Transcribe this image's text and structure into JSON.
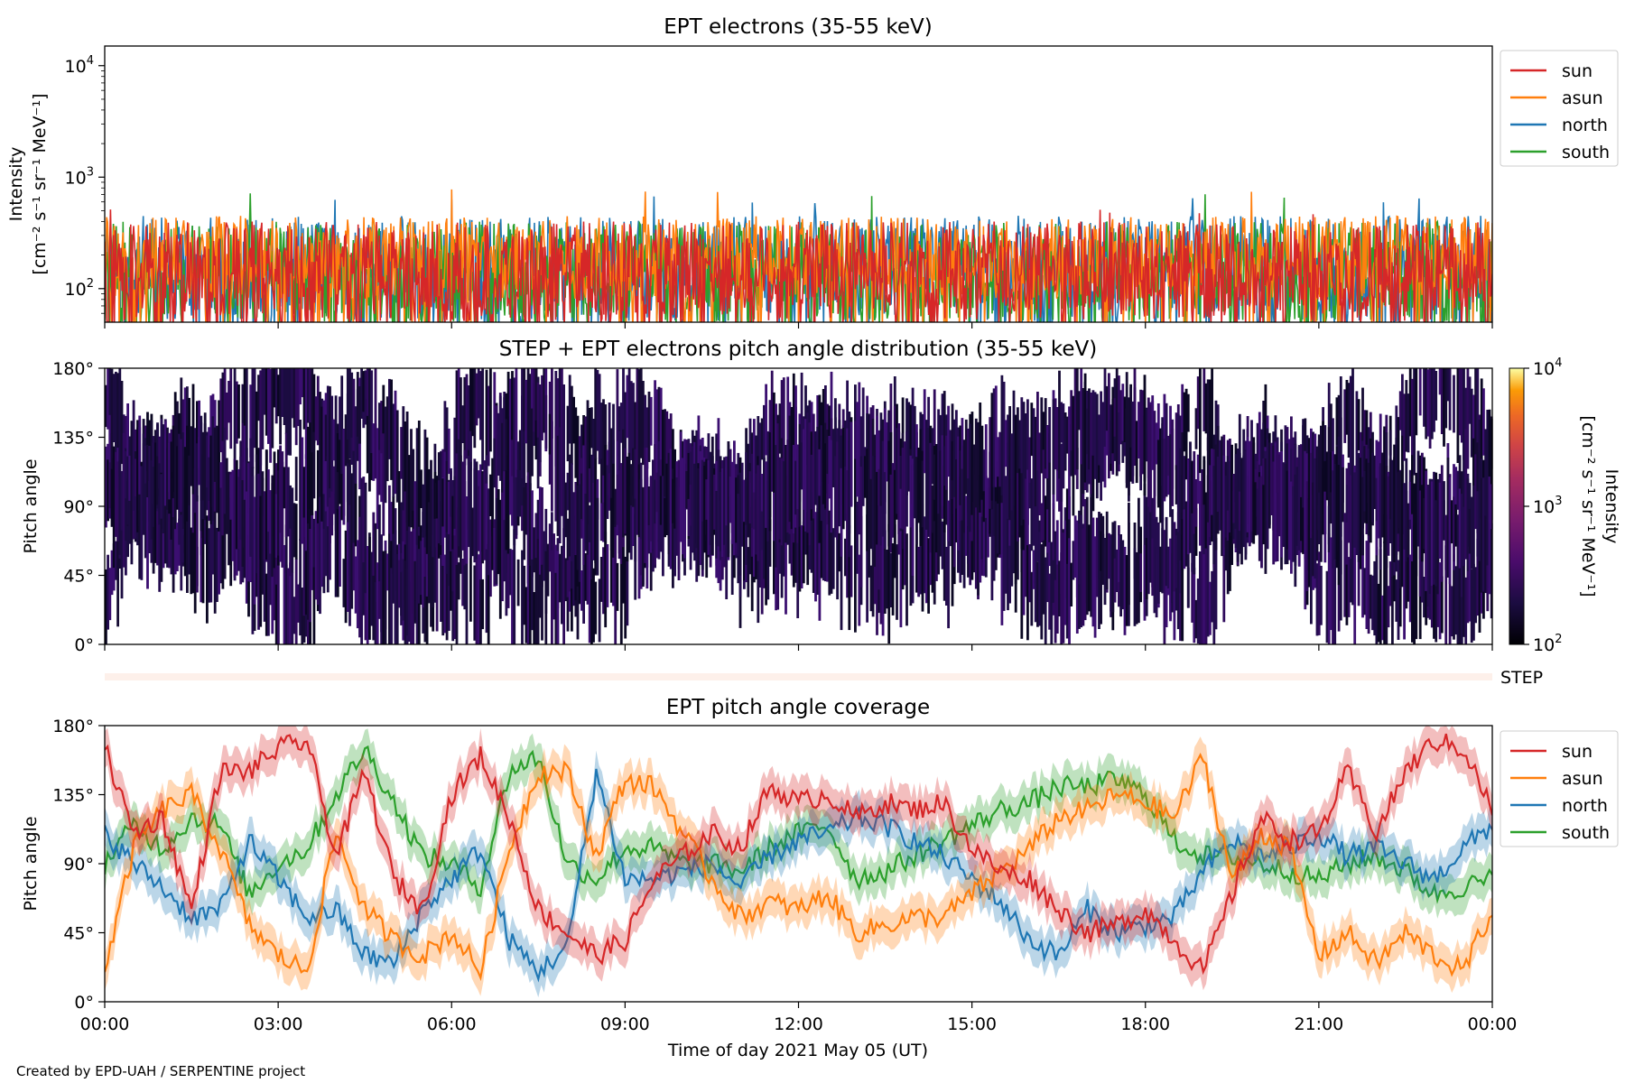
{
  "footer": "Created by EPD-UAH / SERPENTINE project",
  "xlabel": "Time of day 2021 May 05 (UT)",
  "x_ticks": [
    "00:00",
    "03:00",
    "06:00",
    "09:00",
    "12:00",
    "15:00",
    "18:00",
    "21:00",
    "00:00"
  ],
  "step_label": "STEP",
  "colors": {
    "sun": "#d62728",
    "asun": "#ff7f0e",
    "north": "#1f77b4",
    "south": "#2ca02c"
  },
  "chart_data": [
    {
      "type": "line",
      "title": "EPT electrons (35-55 keV)",
      "ylabel_line1": "Intensity",
      "ylabel_line2": "[cm⁻² s⁻¹ sr⁻¹ MeV⁻¹]",
      "yscale": "log",
      "ylim": [
        50,
        15000
      ],
      "y_ticks": [
        {
          "v": 100,
          "base": "10",
          "exp": "2"
        },
        {
          "v": 1000,
          "base": "10",
          "exp": "3"
        },
        {
          "v": 10000,
          "base": "10",
          "exp": "4"
        }
      ],
      "x_range_hours": [
        0,
        24
      ],
      "legend_location": "upper right, outside",
      "series": [
        {
          "name": "sun",
          "typical_range": [
            50,
            400
          ],
          "max": 520
        },
        {
          "name": "asun",
          "typical_range": [
            80,
            450
          ],
          "max": 780
        },
        {
          "name": "north",
          "typical_range": [
            50,
            450
          ],
          "max": 680
        },
        {
          "name": "south",
          "typical_range": [
            50,
            400
          ],
          "max": 720
        }
      ]
    },
    {
      "type": "heatmap",
      "title": "STEP + EPT electrons pitch angle distribution (35-55 keV)",
      "ylabel": "Pitch angle",
      "ylim": [
        0,
        180
      ],
      "y_ticks": [
        "0°",
        "45°",
        "90°",
        "135°",
        "180°"
      ],
      "colorbar": {
        "label_line1": "Intensity",
        "label_line2": "[cm⁻² s⁻¹ sr⁻¹ MeV⁻¹]",
        "scale": "log",
        "range": [
          100,
          10000
        ],
        "ticks": [
          {
            "v": 100,
            "base": "10",
            "exp": "2"
          },
          {
            "v": 1000,
            "base": "10",
            "exp": "3"
          },
          {
            "v": 10000,
            "base": "10",
            "exp": "4"
          }
        ],
        "colormap": "inferno"
      },
      "dominant_intensity": 150
    },
    {
      "type": "line",
      "title": "EPT pitch angle coverage",
      "ylabel": "Pitch angle",
      "ylim": [
        0,
        180
      ],
      "y_ticks": [
        "0°",
        "45°",
        "90°",
        "135°",
        "180°"
      ],
      "legend_location": "upper right, outside",
      "series": [
        {
          "name": "sun",
          "x_hours": [
            0,
            0.5,
            1,
            1.5,
            2,
            2.5,
            3,
            3.5,
            4,
            4.5,
            5,
            5.5,
            6,
            6.5,
            7,
            7.5,
            8,
            8.5,
            9,
            9.5,
            10,
            10.5,
            11,
            11.5,
            12,
            12.5,
            13,
            13.5,
            14,
            14.5,
            15,
            15.5,
            16,
            16.5,
            17,
            17.5,
            18,
            18.5,
            19,
            19.5,
            20,
            20.5,
            21,
            21.5,
            22,
            22.5,
            23,
            23.5,
            24
          ],
          "values": [
            165,
            110,
            120,
            60,
            150,
            150,
            165,
            170,
            95,
            150,
            80,
            60,
            135,
            160,
            120,
            60,
            45,
            30,
            40,
            80,
            95,
            110,
            100,
            140,
            130,
            135,
            120,
            130,
            125,
            130,
            100,
            85,
            80,
            60,
            45,
            50,
            60,
            40,
            20,
            70,
            120,
            105,
            110,
            150,
            110,
            150,
            170,
            165,
            125
          ]
        },
        {
          "name": "asun",
          "x_hours": [
            0,
            0.5,
            1,
            1.5,
            2,
            2.5,
            3,
            3.5,
            4,
            4.5,
            5,
            5.5,
            6,
            6.5,
            7,
            7.5,
            8,
            8.5,
            9,
            9.5,
            10,
            10.5,
            11,
            11.5,
            12,
            12.5,
            13,
            13.5,
            14,
            14.5,
            15,
            15.5,
            16,
            16.5,
            17,
            17.5,
            18,
            18.5,
            19,
            19.5,
            20,
            20.5,
            21,
            21.5,
            22,
            22.5,
            23,
            23.5,
            24
          ],
          "values": [
            20,
            100,
            125,
            135,
            100,
            50,
            30,
            20,
            110,
            60,
            40,
            30,
            45,
            20,
            100,
            150,
            150,
            95,
            145,
            140,
            110,
            80,
            55,
            65,
            60,
            70,
            45,
            50,
            55,
            55,
            70,
            85,
            100,
            120,
            125,
            135,
            130,
            120,
            160,
            80,
            110,
            100,
            30,
            45,
            25,
            45,
            30,
            20,
            60
          ]
        },
        {
          "name": "north",
          "x_hours": [
            0,
            0.5,
            1,
            1.5,
            2,
            2.5,
            3,
            3.5,
            4,
            4.5,
            5,
            5.5,
            6,
            6.5,
            7,
            7.5,
            8,
            8.5,
            9,
            9.5,
            10,
            10.5,
            11,
            11.5,
            12,
            12.5,
            13,
            13.5,
            14,
            14.5,
            15,
            15.5,
            16,
            16.5,
            17,
            17.5,
            18,
            18.5,
            19,
            19.5,
            20,
            20.5,
            21,
            21.5,
            22,
            22.5,
            23,
            23.5,
            24
          ],
          "values": [
            110,
            90,
            75,
            55,
            60,
            105,
            80,
            55,
            60,
            30,
            25,
            60,
            80,
            100,
            40,
            20,
            35,
            150,
            80,
            80,
            85,
            90,
            75,
            95,
            105,
            110,
            120,
            115,
            105,
            95,
            80,
            65,
            40,
            30,
            60,
            45,
            50,
            55,
            85,
            105,
            95,
            100,
            110,
            95,
            100,
            90,
            80,
            100,
            115
          ]
        },
        {
          "name": "south",
          "x_hours": [
            0,
            0.5,
            1,
            1.5,
            2,
            2.5,
            3,
            3.5,
            4,
            4.5,
            5,
            5.5,
            6,
            6.5,
            7,
            7.5,
            8,
            8.5,
            9,
            9.5,
            10,
            10.5,
            11,
            11.5,
            12,
            12.5,
            13,
            13.5,
            14,
            14.5,
            15,
            15.5,
            16,
            16.5,
            17,
            17.5,
            18,
            18.5,
            19,
            19.5,
            20,
            20.5,
            21,
            21.5,
            22,
            22.5,
            23,
            23.5,
            24
          ],
          "values": [
            90,
            115,
            100,
            120,
            115,
            70,
            90,
            100,
            135,
            165,
            130,
            95,
            90,
            75,
            150,
            160,
            90,
            80,
            100,
            100,
            90,
            90,
            85,
            100,
            110,
            115,
            80,
            85,
            95,
            105,
            115,
            125,
            130,
            140,
            140,
            145,
            135,
            105,
            95,
            95,
            90,
            85,
            80,
            90,
            95,
            85,
            70,
            75,
            80
          ]
        }
      ]
    }
  ]
}
